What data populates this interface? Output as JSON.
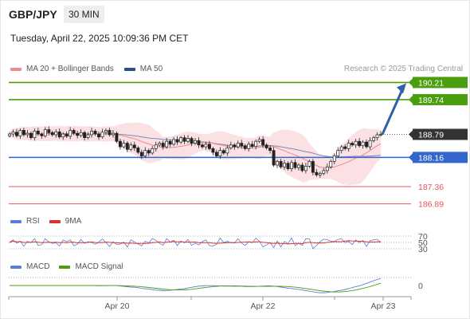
{
  "header": {
    "pair": "GBP/JPY",
    "timeframe": "30 MIN"
  },
  "timestamp": "Tuesday, April 22, 2025 10:09:36 PM CET",
  "credit": "Research © 2025 Trading Central",
  "colors": {
    "green": "#4a9e0f",
    "blue": "#3366cc",
    "red": "#e8545f",
    "pink": "#f4a3a8",
    "dark": "#333333",
    "arrow": "#2e5fa8",
    "band": "#fbe1e3",
    "ma50": "#7a8ab8"
  },
  "legend": {
    "main": [
      {
        "label": "MA 20 + Bollinger Bands",
        "color": "#f0888e"
      },
      {
        "label": "MA 50",
        "color": "#2e4f8a"
      }
    ],
    "rsi": [
      {
        "label": "RSI",
        "color": "#5b7fd6"
      },
      {
        "label": "9MA",
        "color": "#d9312f"
      }
    ],
    "macd": [
      {
        "label": "MACD",
        "color": "#5b7fd6"
      },
      {
        "label": "MACD Signal",
        "color": "#4a9e0f"
      }
    ]
  },
  "chart_data": {
    "type": "candlestick",
    "levels": [
      {
        "value": 190.21,
        "label": "190.21",
        "kind": "resistance",
        "color": "#4a9e0f"
      },
      {
        "value": 189.74,
        "label": "189.74",
        "kind": "resistance",
        "color": "#4a9e0f"
      },
      {
        "value": 188.79,
        "label": "188.79",
        "kind": "last",
        "color": "#333333"
      },
      {
        "value": 188.16,
        "label": "188.16",
        "kind": "pivot",
        "color": "#3366cc"
      },
      {
        "value": 187.36,
        "label": "187.36",
        "kind": "support",
        "color": "#e8545f"
      },
      {
        "value": 186.89,
        "label": "186.89",
        "kind": "support",
        "color": "#e8545f"
      }
    ],
    "y_range": [
      186.75,
      190.35
    ],
    "x_tick_labels": [
      "Apr 20",
      "Apr 22",
      "Apr 23"
    ],
    "price_path": [
      188.8,
      188.85,
      188.75,
      188.9,
      188.78,
      188.82,
      188.7,
      188.88,
      188.8,
      188.75,
      188.92,
      188.84,
      188.78,
      188.86,
      188.72,
      188.8,
      188.74,
      188.9,
      188.82,
      188.76,
      188.84,
      188.7,
      188.78,
      188.88,
      188.8,
      188.72,
      188.85,
      188.9,
      188.78,
      188.82,
      188.6,
      188.45,
      188.55,
      188.38,
      188.5,
      188.42,
      188.3,
      188.2,
      188.35,
      188.28,
      188.4,
      188.5,
      188.55,
      188.45,
      188.6,
      188.52,
      188.65,
      188.58,
      188.7,
      188.6,
      188.68,
      188.55,
      188.62,
      188.5,
      188.45,
      188.52,
      188.4,
      188.3,
      188.2,
      188.35,
      188.28,
      188.42,
      188.5,
      188.45,
      188.55,
      188.48,
      188.4,
      188.52,
      188.46,
      188.6,
      188.65,
      188.5,
      188.42,
      188.35,
      187.95,
      188.05,
      187.9,
      188.0,
      187.85,
      188.02,
      187.88,
      187.95,
      187.8,
      187.92,
      188.05,
      187.75,
      187.68,
      187.72,
      187.8,
      187.9,
      188.05,
      188.2,
      188.35,
      188.45,
      188.4,
      188.55,
      188.5,
      188.6,
      188.48,
      188.58,
      188.45,
      188.62,
      188.7,
      188.78,
      188.79
    ],
    "projection": {
      "from": 188.79,
      "to": 190.21
    },
    "rsi": {
      "levels": [
        70,
        50,
        30
      ],
      "labels": [
        "70",
        "50",
        "30"
      ]
    },
    "macd": {
      "zero_label": "0"
    }
  }
}
